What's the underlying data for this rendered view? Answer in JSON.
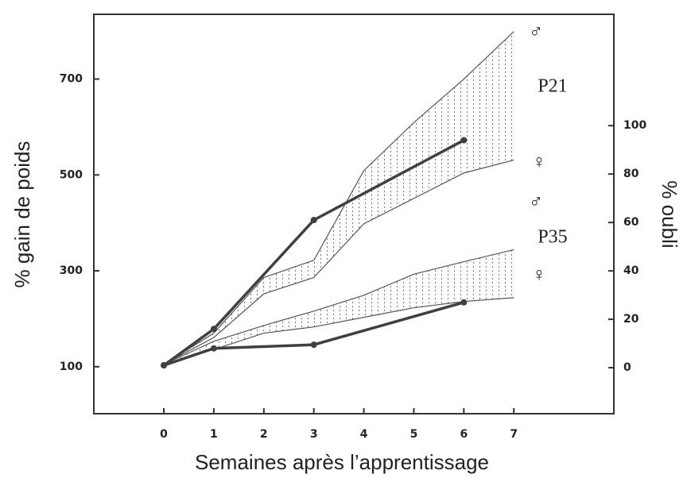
{
  "chart_data": {
    "type": "line",
    "x_label": "Semaines après l’apprentissage",
    "y_label": "% gain de poids",
    "y2_label": "% oubli",
    "x": [
      0,
      1,
      2,
      3,
      4,
      5,
      6,
      7
    ],
    "xlim": [
      -1.4,
      9
    ],
    "xticks": [
      0,
      1,
      2,
      3,
      4,
      5,
      6,
      7
    ],
    "ylim": [
      2,
      835
    ],
    "yticks": [
      100,
      300,
      500,
      700
    ],
    "y2lim": [
      -19,
      146
    ],
    "y2ticks": [
      0,
      20,
      40,
      60,
      80,
      100
    ],
    "annotations": [
      "♂",
      "P21",
      "♀",
      "♂",
      "P35",
      "♀"
    ],
    "series": [
      {
        "color": "#555555",
        "values": [
          105,
          170,
          286,
          322,
          509,
          609,
          700,
          799
        ]
      },
      {
        "color": "#555555",
        "values": [
          105,
          161,
          252,
          286,
          398,
          451,
          504,
          531
        ]
      },
      {
        "color": "#555555",
        "values": [
          105,
          153,
          186,
          216,
          249,
          293,
          319,
          344
        ]
      },
      {
        "color": "#555555",
        "values": [
          105,
          136,
          170,
          183,
          203,
          223,
          236,
          244
        ]
      },
      {
        "color": "#404040",
        "axis": "y2",
        "values": [
          1,
          16,
          null,
          61,
          null,
          null,
          94,
          null
        ]
      },
      {
        "color": "#404040",
        "axis": "y2",
        "values": [
          1,
          8,
          null,
          9.5,
          null,
          null,
          27,
          null
        ]
      }
    ]
  }
}
